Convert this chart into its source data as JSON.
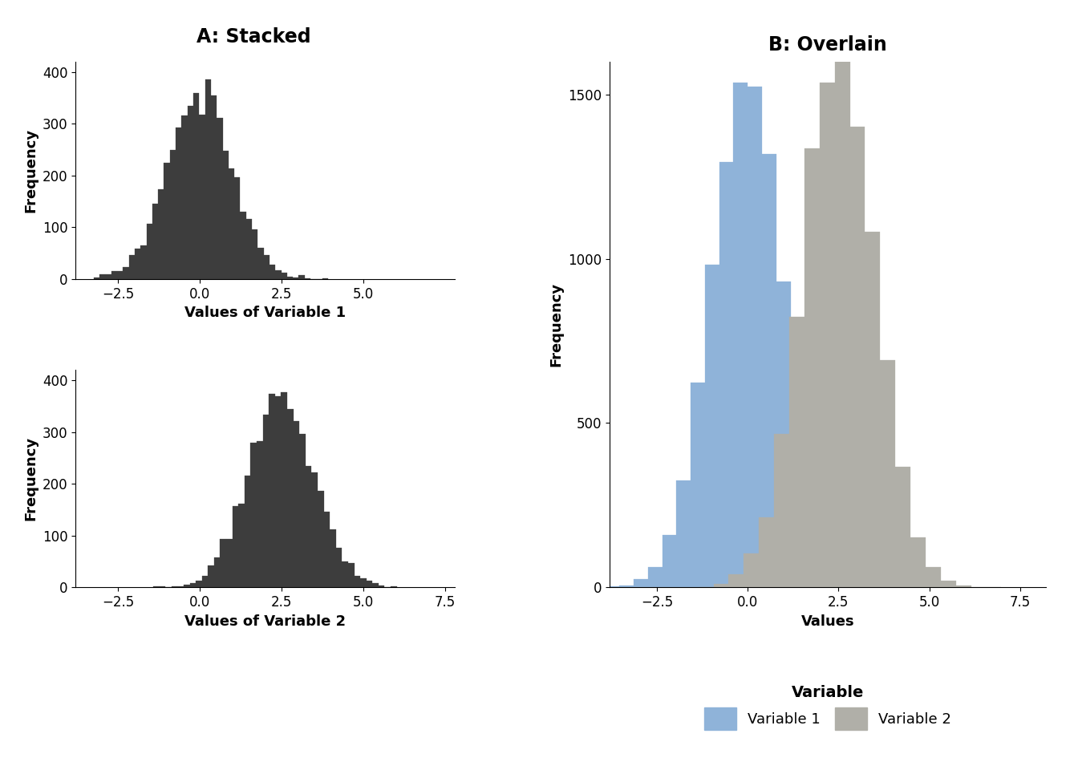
{
  "title_left": "A: Stacked",
  "title_right": "B: Overlain",
  "var1_mean": 0.0,
  "var1_std": 1.0,
  "var2_mean": 2.5,
  "var2_std": 1.0,
  "n_samples_stacked": 5000,
  "n_samples_overlain": 10000,
  "n_bins_stacked": 40,
  "n_bins_overlain": 20,
  "stacked_color": "#3d3d3d",
  "var1_color": "#8fb3d9",
  "var2_color": "#b0afa8",
  "xlabel_left1": "Values of Variable 1",
  "xlabel_left2": "Values of Variable 2",
  "xlabel_right": "Values",
  "ylabel": "Frequency",
  "legend_title": "Variable",
  "legend_label1": "Variable 1",
  "legend_label2": "Variable 2",
  "title_fontsize": 17,
  "label_fontsize": 13,
  "tick_fontsize": 12,
  "legend_fontsize": 13,
  "background_color": "#ffffff",
  "seed": 42,
  "xlim_left": [
    -3.8,
    7.8
  ],
  "xlim_right": [
    -3.8,
    8.2
  ],
  "ylim_stacked": [
    0,
    420
  ],
  "ylim_overlain": [
    0,
    1600
  ],
  "xticks_left1": [
    -2.5,
    0.0,
    2.5,
    5.0
  ],
  "xticks_left2": [
    -2.5,
    0.0,
    2.5,
    5.0,
    7.5
  ],
  "xticks_right": [
    -2.5,
    0.0,
    2.5,
    5.0,
    7.5
  ],
  "yticks_stacked": [
    0,
    100,
    200,
    300,
    400
  ],
  "yticks_overlain": [
    0,
    500,
    1000,
    1500
  ]
}
